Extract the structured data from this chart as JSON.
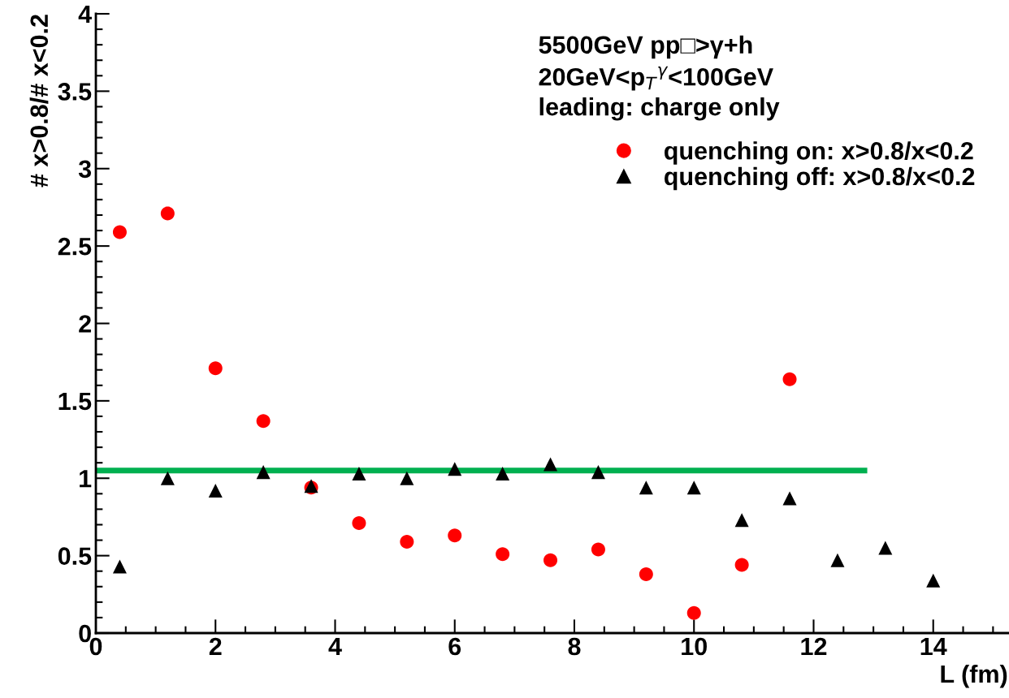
{
  "chart_data": {
    "type": "scatter",
    "xlabel": "L (fm)",
    "ylabel": "# x>0.8/# x<0.2",
    "annotations": [
      "5500GeV pp□>γ+h",
      "20GeV<p$_{T}$$^{γ}$<100GeV",
      "leading: charge only"
    ],
    "xlim": [
      0,
      15.25
    ],
    "xticks": [
      0,
      2,
      4,
      6,
      8,
      10,
      12,
      14
    ],
    "ylim": [
      0,
      4
    ],
    "yticks": [
      0,
      0.5,
      1,
      1.5,
      2,
      2.5,
      3,
      3.5,
      4
    ],
    "grid": false,
    "legend": "top right",
    "series": [
      {
        "name": "quenching on: x>0.8/x<0.2",
        "color": "#ff0000",
        "marker": "circle",
        "x": [
          0.4,
          1.2,
          2.0,
          2.8,
          3.6,
          4.4,
          5.2,
          6.0,
          6.8,
          7.6,
          8.4,
          9.2,
          10.0,
          10.8,
          11.6
        ],
        "values": [
          2.59,
          2.71,
          1.71,
          1.37,
          0.94,
          0.71,
          0.59,
          0.63,
          0.51,
          0.47,
          0.54,
          0.38,
          0.13,
          0.44,
          1.64
        ]
      },
      {
        "name": "quenching off: x>0.8/x<0.2",
        "color": "#000000",
        "marker": "triangle",
        "x": [
          0.4,
          1.2,
          2.0,
          2.8,
          3.6,
          4.4,
          5.2,
          6.0,
          6.8,
          7.6,
          8.4,
          9.2,
          10.0,
          10.8,
          11.6,
          12.4,
          13.2,
          14.0
        ],
        "values": [
          0.43,
          1.0,
          0.92,
          1.04,
          0.95,
          1.03,
          1.0,
          1.06,
          1.03,
          1.09,
          1.04,
          0.94,
          0.94,
          0.73,
          0.87,
          0.47,
          0.55,
          0.34
        ]
      },
      {
        "type": "line",
        "color": "#00b050",
        "marker": "none",
        "x": [
          0.05,
          12.85
        ],
        "values": [
          1.05,
          1.05
        ]
      }
    ]
  }
}
